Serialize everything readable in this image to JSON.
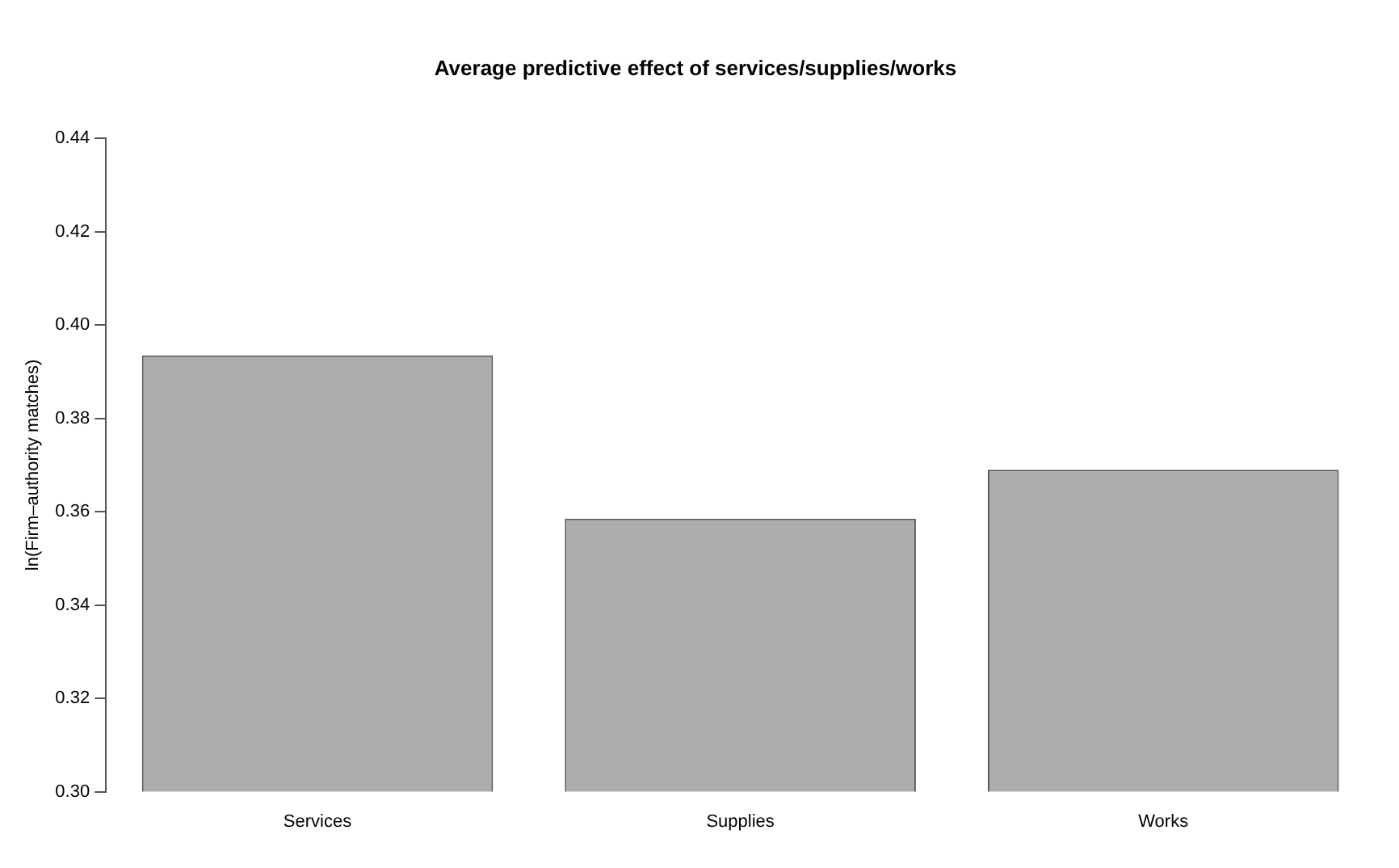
{
  "chart_data": {
    "type": "bar",
    "title": "Average predictive effect of services/supplies/works",
    "ylabel": "ln(Firm–authority matches)",
    "categories": [
      "Services",
      "Supplies",
      "Works"
    ],
    "values": [
      0.3935,
      0.3585,
      0.369
    ],
    "color": "#adadad",
    "ylim": [
      0.3,
      0.44
    ],
    "yticks": [
      {
        "value": 0.3,
        "label": "0.30"
      },
      {
        "value": 0.32,
        "label": "0.32"
      },
      {
        "value": 0.34,
        "label": "0.34"
      },
      {
        "value": 0.36,
        "label": "0.36"
      },
      {
        "value": 0.38,
        "label": "0.38"
      },
      {
        "value": 0.4,
        "label": "0.40"
      },
      {
        "value": 0.42,
        "label": "0.42"
      },
      {
        "value": 0.44,
        "label": "0.44"
      }
    ],
    "grid": false,
    "legend": false
  }
}
